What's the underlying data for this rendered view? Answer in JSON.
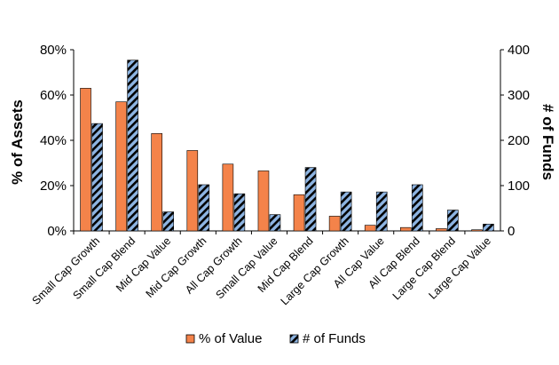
{
  "chart_data": {
    "type": "bar",
    "categories": [
      "Small Cap Growth",
      "Small Cap Blend",
      "Mid Cap Value",
      "Mid Cap Growth",
      "All Cap Growth",
      "Small Cap Value",
      "Mid Cap Blend",
      "Large Cap Growth",
      "All Cap Value",
      "All Cap Blend",
      "Large Cap Blend",
      "Large Cap Value"
    ],
    "series": [
      {
        "name": "% of Value",
        "axis": "left",
        "color": "#F4834A",
        "pattern": "solid",
        "values": [
          63,
          57,
          43,
          35.5,
          29.5,
          26.5,
          16,
          6.5,
          2.5,
          1.5,
          1,
          0.5
        ]
      },
      {
        "name": "# of Funds",
        "axis": "right",
        "color": "#8DB4E2",
        "pattern": "black-diagonal-stripes",
        "values": [
          237,
          377,
          42,
          102,
          82,
          36,
          140,
          86,
          86,
          102,
          46,
          15
        ]
      }
    ],
    "y_left": {
      "label": "% of Assets",
      "ticks": [
        "0%",
        "20%",
        "40%",
        "60%",
        "80%"
      ],
      "range": [
        0,
        80
      ]
    },
    "y_right": {
      "label": "# of Funds",
      "ticks": [
        "0",
        "100",
        "200",
        "300",
        "400"
      ],
      "range": [
        0,
        400
      ]
    },
    "legend": {
      "position": "bottom",
      "items": [
        "% of Value",
        "# of Funds"
      ]
    },
    "grid": false
  }
}
